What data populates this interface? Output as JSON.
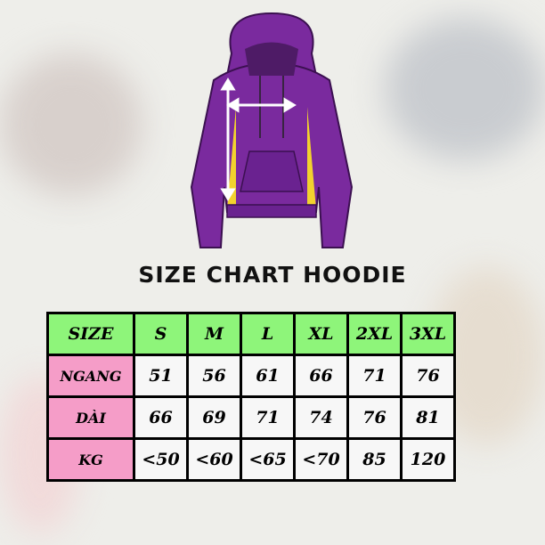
{
  "title": "SIZE CHART HOODIE",
  "colors": {
    "header": "#8ef57a",
    "row_header": "#f59dc8",
    "hoodie": "#7a2a9e",
    "accent": "#f2d22e"
  },
  "illustration": "hoodie-with-measurement-arrows",
  "table": {
    "header": [
      "SIZE",
      "S",
      "M",
      "L",
      "XL",
      "2XL",
      "3XL"
    ],
    "rows": [
      {
        "label": "NGANG",
        "values": [
          "51",
          "56",
          "61",
          "66",
          "71",
          "76"
        ]
      },
      {
        "label": "DÀI",
        "values": [
          "66",
          "69",
          "71",
          "74",
          "76",
          "81"
        ]
      },
      {
        "label": "KG",
        "values": [
          "<50",
          "<60",
          "<65",
          "<70",
          "85",
          "120"
        ]
      }
    ]
  }
}
